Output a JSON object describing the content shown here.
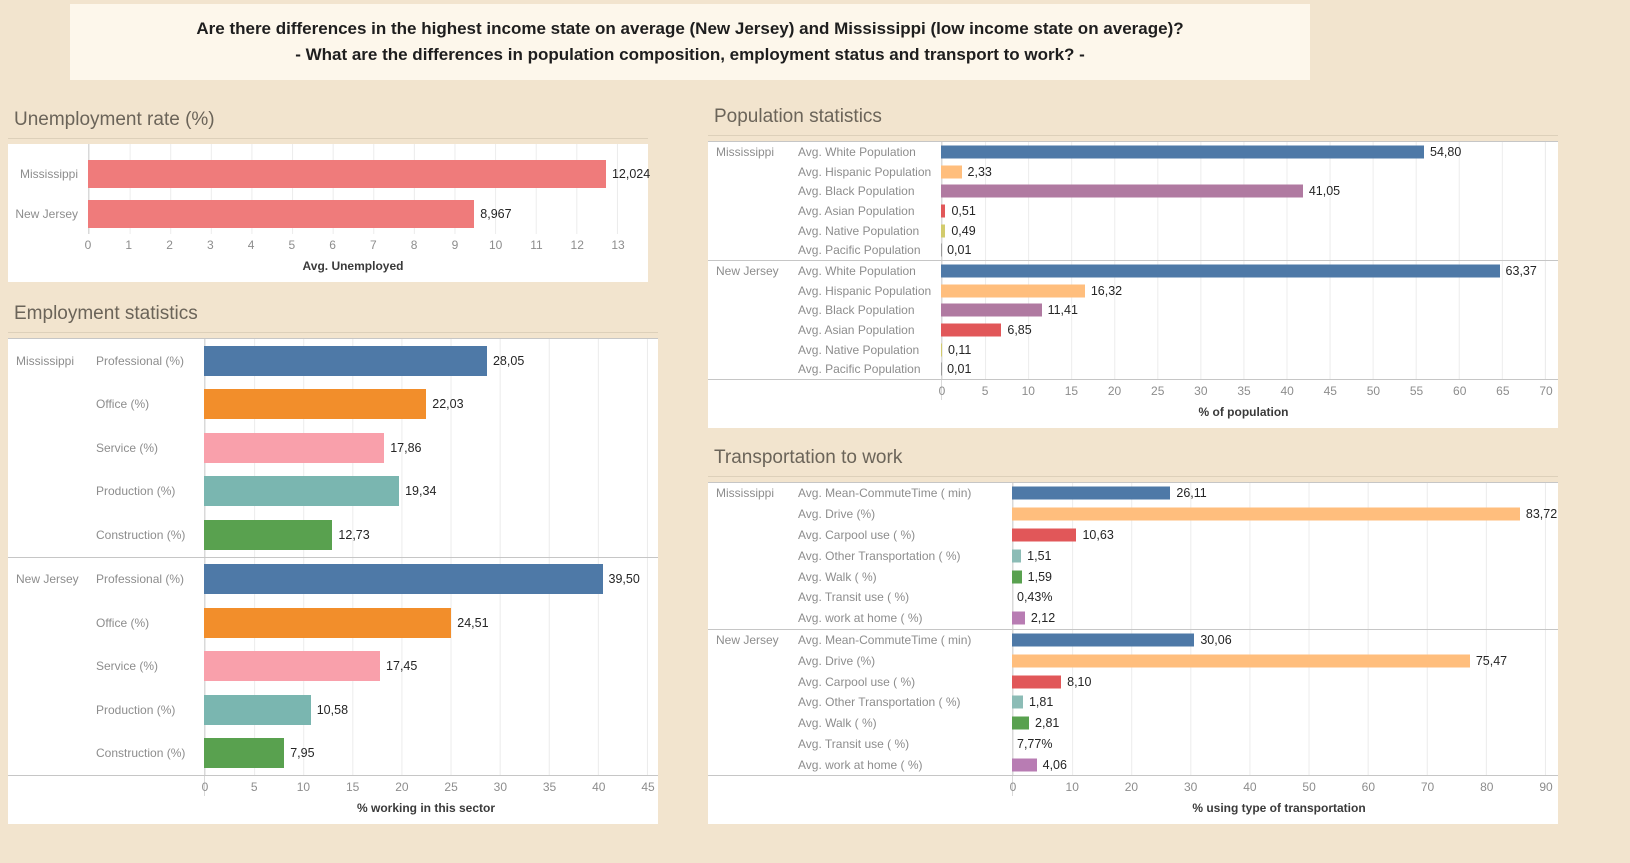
{
  "banner": {
    "line1": "Are there differences in the highest income state on average (New Jersey) and Mississippi (low income state on average)?",
    "line2": "- What are the differences in population composition, employment status and transport to work? -"
  },
  "palette": {
    "background": "#f2e4ce",
    "banner_background": "#fdf7eb",
    "panel_background": "#ffffff",
    "salmon": "#ef7b7b",
    "blue": "#4e79a7",
    "orange": "#f28e2b",
    "pink": "#f9a0ab",
    "teal": "#7ab6b0",
    "light_teal": "#8cbcb6",
    "green": "#59a14f",
    "light_orange": "#ffbe7d",
    "mauve": "#b07aa1",
    "red": "#e15759",
    "olive": "#d2cb6c",
    "work_home_purple": "#b87cb3"
  },
  "charts": {
    "unemployment": {
      "title": "Unemployment rate (%)",
      "axis_title": "Avg. Unemployed",
      "axis_max": 13,
      "ticks": [
        "0",
        "1",
        "2",
        "3",
        "4",
        "5",
        "6",
        "7",
        "8",
        "9",
        "10",
        "11",
        "12",
        "13"
      ],
      "groups": [
        {
          "state": "",
          "rows": [
            {
              "label": "Mississippi",
              "value": 12.024,
              "display": "12,024",
              "color": "#ef7b7b"
            },
            {
              "label": "New Jersey",
              "value": 8.967,
              "display": "8,967",
              "color": "#ef7b7b"
            }
          ]
        }
      ]
    },
    "employment": {
      "title": "Employment statistics",
      "axis_title": "% working in this sector",
      "axis_max": 45,
      "ticks": [
        "0",
        "5",
        "10",
        "15",
        "20",
        "25",
        "30",
        "35",
        "40",
        "45"
      ],
      "groups": [
        {
          "state": "Mississippi",
          "rows": [
            {
              "label": "Professional (%)",
              "value": 28.05,
              "display": "28,05",
              "color": "#4e79a7"
            },
            {
              "label": "Office (%)",
              "value": 22.03,
              "display": "22,03",
              "color": "#f28e2b"
            },
            {
              "label": "Service (%)",
              "value": 17.86,
              "display": "17,86",
              "color": "#f9a0ab"
            },
            {
              "label": "Production (%)",
              "value": 19.34,
              "display": "19,34",
              "color": "#7ab6b0"
            },
            {
              "label": "Construction (%)",
              "value": 12.73,
              "display": "12,73",
              "color": "#59a14f"
            }
          ]
        },
        {
          "state": "New Jersey",
          "rows": [
            {
              "label": "Professional (%)",
              "value": 39.5,
              "display": "39,50",
              "color": "#4e79a7"
            },
            {
              "label": "Office (%)",
              "value": 24.51,
              "display": "24,51",
              "color": "#f28e2b"
            },
            {
              "label": "Service (%)",
              "value": 17.45,
              "display": "17,45",
              "color": "#f9a0ab"
            },
            {
              "label": "Production (%)",
              "value": 10.58,
              "display": "10,58",
              "color": "#7ab6b0"
            },
            {
              "label": "Construction (%)",
              "value": 7.95,
              "display": "7,95",
              "color": "#59a14f"
            }
          ]
        }
      ]
    },
    "population": {
      "title": "Population statistics",
      "axis_title": "% of population",
      "axis_max": 70,
      "ticks": [
        "0",
        "5",
        "10",
        "15",
        "20",
        "25",
        "30",
        "35",
        "40",
        "45",
        "50",
        "55",
        "60",
        "65",
        "70"
      ],
      "groups": [
        {
          "state": "Mississippi",
          "rows": [
            {
              "label": "Avg. White Population",
              "value": 54.8,
              "display": "54,80",
              "color": "#4e79a7"
            },
            {
              "label": "Avg. Hispanic Population",
              "value": 2.33,
              "display": "2,33",
              "color": "#ffbe7d"
            },
            {
              "label": "Avg. Black Population",
              "value": 41.05,
              "display": "41,05",
              "color": "#b07aa1"
            },
            {
              "label": "Avg. Asian Population",
              "value": 0.51,
              "display": "0,51",
              "color": "#e15759"
            },
            {
              "label": "Avg. Native Population",
              "value": 0.49,
              "display": "0,49",
              "color": "#d2cb6c"
            },
            {
              "label": "Avg. Pacific Population",
              "value": 0.01,
              "display": "0,01",
              "color": "#9c9c9c"
            }
          ]
        },
        {
          "state": "New Jersey",
          "rows": [
            {
              "label": "Avg. White Population",
              "value": 63.37,
              "display": "63,37",
              "color": "#4e79a7"
            },
            {
              "label": "Avg. Hispanic Population",
              "value": 16.32,
              "display": "16,32",
              "color": "#ffbe7d"
            },
            {
              "label": "Avg. Black Population",
              "value": 11.41,
              "display": "11,41",
              "color": "#b07aa1"
            },
            {
              "label": "Avg. Asian Population",
              "value": 6.85,
              "display": "6,85",
              "color": "#e15759"
            },
            {
              "label": "Avg. Native Population",
              "value": 0.11,
              "display": "0,11",
              "color": "#d2cb6c"
            },
            {
              "label": "Avg. Pacific Population",
              "value": 0.01,
              "display": "0,01",
              "color": "#9c9c9c"
            }
          ]
        }
      ]
    },
    "transportation": {
      "title": "Transportation to work",
      "axis_title": "% using type of transportation",
      "axis_max": 90,
      "ticks": [
        "0",
        "10",
        "20",
        "30",
        "40",
        "50",
        "60",
        "70",
        "80",
        "90"
      ],
      "groups": [
        {
          "state": "Mississippi",
          "rows": [
            {
              "label": "Avg. Mean-CommuteTime ( min)",
              "value": 26.11,
              "display": "26,11",
              "color": "#4e79a7"
            },
            {
              "label": "Avg. Drive (%)",
              "value": 83.72,
              "display": "83,72",
              "color": "#ffbe7d"
            },
            {
              "label": "Avg. Carpool use ( %)",
              "value": 10.63,
              "display": "10,63",
              "color": "#e15759"
            },
            {
              "label": "Avg. Other Transportation ( %)",
              "value": 1.51,
              "display": "1,51",
              "color": "#8cbcb6"
            },
            {
              "label": "Avg. Walk ( %)",
              "value": 1.59,
              "display": "1,59",
              "color": "#59a14f"
            },
            {
              "label": "Avg. Transit use ( %)",
              "value": 0.43,
              "display": "0,43%",
              "color": "#9c9c9c",
              "no_bar": true
            },
            {
              "label": "Avg. work at home ( %)",
              "value": 2.12,
              "display": "2,12",
              "color": "#b87cb3"
            }
          ]
        },
        {
          "state": "New Jersey",
          "rows": [
            {
              "label": "Avg. Mean-CommuteTime ( min)",
              "value": 30.06,
              "display": "30,06",
              "color": "#4e79a7"
            },
            {
              "label": "Avg. Drive (%)",
              "value": 75.47,
              "display": "75,47",
              "color": "#ffbe7d"
            },
            {
              "label": "Avg. Carpool use ( %)",
              "value": 8.1,
              "display": "8,10",
              "color": "#e15759"
            },
            {
              "label": "Avg. Other Transportation ( %)",
              "value": 1.81,
              "display": "1,81",
              "color": "#8cbcb6"
            },
            {
              "label": "Avg. Walk ( %)",
              "value": 2.81,
              "display": "2,81",
              "color": "#59a14f"
            },
            {
              "label": "Avg. Transit use ( %)",
              "value": 7.77,
              "display": "7,77%",
              "color": "#9c9c9c",
              "no_bar": true
            },
            {
              "label": "Avg. work at home ( %)",
              "value": 4.06,
              "display": "4,06",
              "color": "#b87cb3"
            }
          ]
        }
      ]
    }
  },
  "chart_data": [
    {
      "type": "bar",
      "orientation": "horizontal",
      "title": "Unemployment rate (%)",
      "xlabel": "Avg. Unemployed",
      "xlim": [
        0,
        13
      ],
      "categories": [
        "Mississippi",
        "New Jersey"
      ],
      "values": [
        12.024,
        8.967
      ],
      "grid": true,
      "legend": "none"
    },
    {
      "type": "bar",
      "orientation": "horizontal",
      "title": "Employment statistics",
      "xlabel": "% working in this sector",
      "xlim": [
        0,
        45
      ],
      "categories": [
        "Professional (%)",
        "Office (%)",
        "Service (%)",
        "Production (%)",
        "Construction (%)"
      ],
      "series": [
        {
          "name": "Mississippi",
          "values": [
            28.05,
            22.03,
            17.86,
            19.34,
            12.73
          ]
        },
        {
          "name": "New Jersey",
          "values": [
            39.5,
            24.51,
            17.45,
            10.58,
            7.95
          ]
        }
      ],
      "grid": true,
      "legend": "none"
    },
    {
      "type": "bar",
      "orientation": "horizontal",
      "title": "Population statistics",
      "xlabel": "% of population",
      "xlim": [
        0,
        70
      ],
      "categories": [
        "Avg. White Population",
        "Avg. Hispanic Population",
        "Avg. Black Population",
        "Avg. Asian Population",
        "Avg. Native Population",
        "Avg. Pacific Population"
      ],
      "series": [
        {
          "name": "Mississippi",
          "values": [
            54.8,
            2.33,
            41.05,
            0.51,
            0.49,
            0.01
          ]
        },
        {
          "name": "New Jersey",
          "values": [
            63.37,
            16.32,
            11.41,
            6.85,
            0.11,
            0.01
          ]
        }
      ],
      "grid": true,
      "legend": "none"
    },
    {
      "type": "bar",
      "orientation": "horizontal",
      "title": "Transportation to work",
      "xlabel": "% using type of transportation",
      "xlim": [
        0,
        90
      ],
      "categories": [
        "Avg. Mean-CommuteTime ( min)",
        "Avg. Drive (%)",
        "Avg. Carpool use ( %)",
        "Avg. Other Transportation ( %)",
        "Avg. Walk ( %)",
        "Avg. Transit use ( %)",
        "Avg. work at home ( %)"
      ],
      "series": [
        {
          "name": "Mississippi",
          "values": [
            26.11,
            83.72,
            10.63,
            1.51,
            1.59,
            0.43,
            2.12
          ]
        },
        {
          "name": "New Jersey",
          "values": [
            30.06,
            75.47,
            8.1,
            1.81,
            2.81,
            7.77,
            4.06
          ]
        }
      ],
      "grid": true,
      "legend": "none"
    }
  ]
}
